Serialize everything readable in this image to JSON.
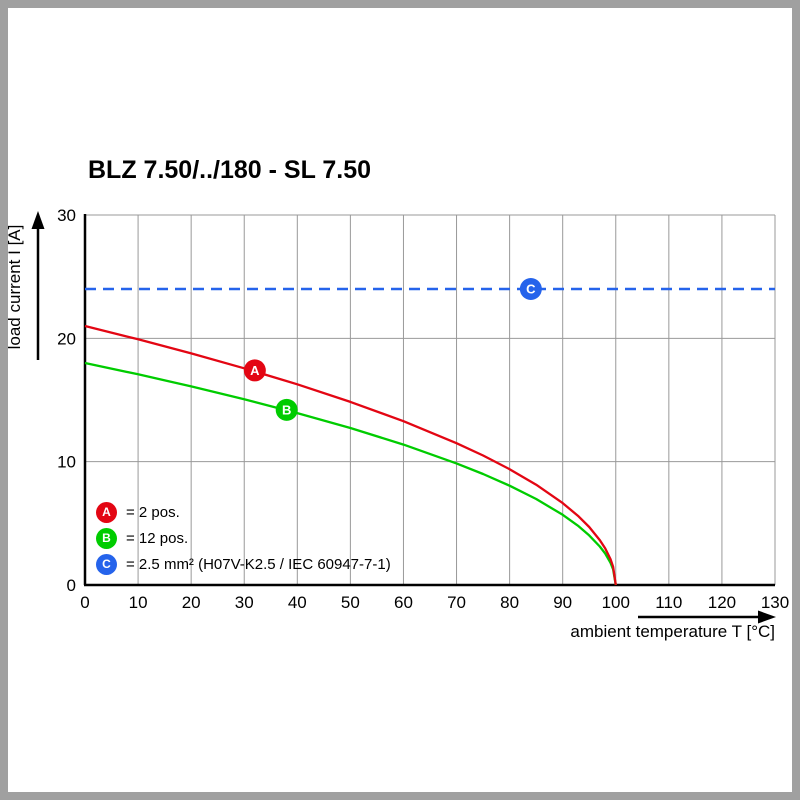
{
  "chart_data": {
    "type": "line",
    "title": "BLZ 7.50/../180 - SL 7.50",
    "xlabel": "ambient temperature T [°C]",
    "ylabel": "load current I [A]",
    "xlim": [
      0,
      130
    ],
    "ylim": [
      0,
      30
    ],
    "x_ticks": [
      0,
      10,
      20,
      30,
      40,
      50,
      60,
      70,
      80,
      90,
      100,
      110,
      120,
      130
    ],
    "y_ticks": [
      0,
      10,
      20,
      30
    ],
    "grid": true,
    "legend_position": "bottom-left-inside",
    "axis_color": "#000000",
    "grid_color": "#999999",
    "frame_color": "#a0a0a0",
    "series": [
      {
        "name": "A",
        "legend_label": "= 2 pos.",
        "color": "#e30613",
        "style": "solid",
        "marker_at": [
          32,
          17.4
        ],
        "points": [
          [
            0,
            21
          ],
          [
            10,
            19.92
          ],
          [
            20,
            18.78
          ],
          [
            30,
            17.57
          ],
          [
            40,
            16.27
          ],
          [
            50,
            14.85
          ],
          [
            60,
            13.28
          ],
          [
            70,
            11.5
          ],
          [
            75,
            10.5
          ],
          [
            80,
            9.39
          ],
          [
            85,
            8.13
          ],
          [
            90,
            6.64
          ],
          [
            93,
            5.56
          ],
          [
            95,
            4.7
          ],
          [
            97,
            3.64
          ],
          [
            98,
            2.97
          ],
          [
            99,
            2.1
          ],
          [
            99.5,
            1.48
          ],
          [
            100,
            0
          ]
        ]
      },
      {
        "name": "B",
        "legend_label": "= 12 pos.",
        "color": "#00cc00",
        "style": "solid",
        "marker_at": [
          38,
          14.2
        ],
        "points": [
          [
            0,
            18
          ],
          [
            10,
            17.08
          ],
          [
            20,
            16.1
          ],
          [
            30,
            15.06
          ],
          [
            40,
            13.94
          ],
          [
            50,
            12.73
          ],
          [
            60,
            11.38
          ],
          [
            70,
            9.86
          ],
          [
            75,
            9.0
          ],
          [
            80,
            8.05
          ],
          [
            85,
            6.97
          ],
          [
            90,
            5.69
          ],
          [
            93,
            4.77
          ],
          [
            95,
            4.02
          ],
          [
            97,
            3.12
          ],
          [
            98,
            2.55
          ],
          [
            99,
            1.8
          ],
          [
            99.5,
            1.27
          ],
          [
            100,
            0
          ]
        ]
      },
      {
        "name": "C",
        "legend_label": "= 2.5 mm² (H07V-K2.5 / IEC 60947-7-1)",
        "color": "#2563eb",
        "style": "dashed",
        "marker_at": [
          84,
          24
        ],
        "points": [
          [
            0,
            24
          ],
          [
            130,
            24
          ]
        ]
      }
    ]
  }
}
